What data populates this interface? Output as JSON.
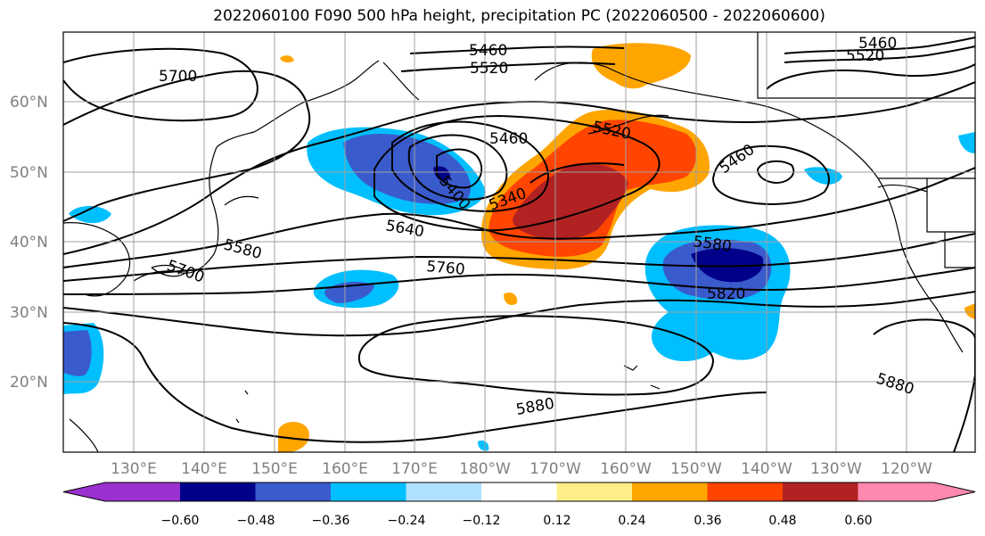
{
  "title": "2022060100 F090 500 hPa height, precipitation PC (2022060500 - 2022060600)",
  "map": {
    "lat_labels": [
      "60°N",
      "50°N",
      "40°N",
      "30°N",
      "20°N"
    ],
    "lon_labels": [
      "130°E",
      "140°E",
      "150°E",
      "160°E",
      "170°E",
      "180°W",
      "170°W",
      "160°W",
      "150°W",
      "140°W",
      "130°W",
      "120°W"
    ],
    "contour_labels": [
      "5460",
      "5520",
      "5700",
      "5460",
      "5520",
      "5460",
      "5520",
      "5460",
      "5400",
      "5340",
      "5640",
      "5580",
      "5700",
      "5760",
      "5580",
      "5820",
      "5880",
      "5880"
    ]
  },
  "colorbar": {
    "colors": [
      "#9b30d0",
      "#00008b",
      "#3a5bcc",
      "#00bfff",
      "#b0e0ff",
      "#ffffff",
      "#ffee88",
      "#ffa500",
      "#ff4500",
      "#b22222",
      "#ff88b0"
    ],
    "ticks": [
      "−0.60",
      "−0.48",
      "−0.36",
      "−0.24",
      "−0.12",
      "0.12",
      "0.24",
      "0.36",
      "0.48",
      "0.60"
    ]
  }
}
